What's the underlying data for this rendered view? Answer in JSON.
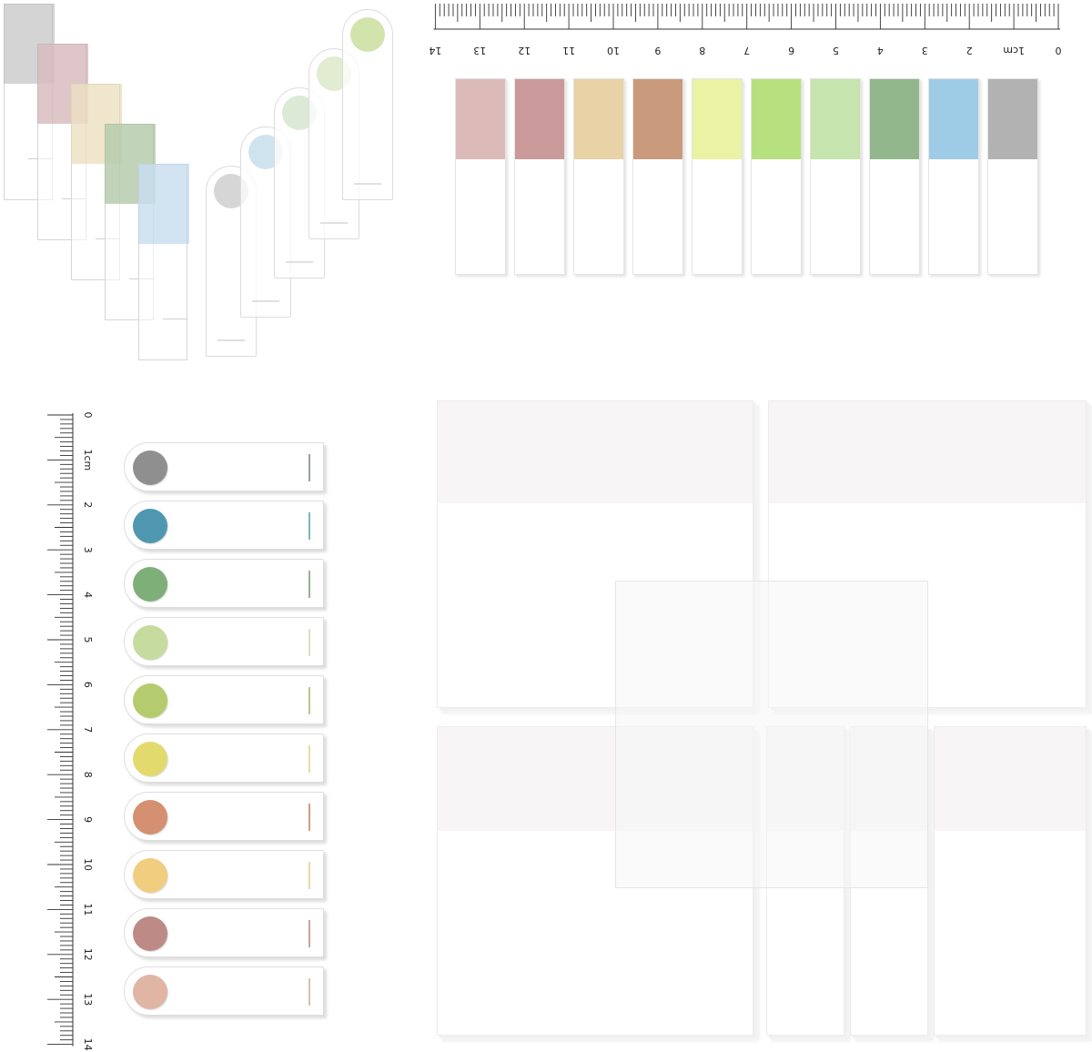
{
  "ruler_horizontal": {
    "labels": [
      "0",
      "1cm",
      "2",
      "3",
      "4",
      "5",
      "6",
      "7",
      "8",
      "9",
      "10",
      "11",
      "12",
      "13",
      "14"
    ]
  },
  "ruler_vertical": {
    "labels": [
      "0",
      "1cm",
      "2",
      "3",
      "4",
      "5",
      "6",
      "7",
      "8",
      "9",
      "10",
      "11",
      "12",
      "13",
      "14"
    ]
  },
  "fan_strips": [
    {
      "color": "#b9b9b9"
    },
    {
      "color": "#c9a3a8"
    },
    {
      "color": "#e6d5ae"
    },
    {
      "color": "#9bb98f"
    },
    {
      "color": "#b7d2ea"
    }
  ],
  "fan_tabs": [
    {
      "color": "#d6d6d6"
    },
    {
      "color": "#cfe3ef"
    },
    {
      "color": "#dbe9d6"
    },
    {
      "color": "#e2ecd0"
    },
    {
      "color": "#d3e3ac"
    }
  ],
  "flags": [
    {
      "color": "#dcbab8"
    },
    {
      "color": "#c99a99"
    },
    {
      "color": "#e8d2a6"
    },
    {
      "color": "#c99b7c"
    },
    {
      "color": "#eaf2a4"
    },
    {
      "color": "#b7e07f"
    },
    {
      "color": "#c6e4ad"
    },
    {
      "color": "#92b78c"
    },
    {
      "color": "#9ecbe6"
    },
    {
      "color": "#b2b2b2"
    }
  ],
  "tabs": [
    {
      "color": "#8f8f8f",
      "line": "#9aa29a"
    },
    {
      "color": "#4f97b0",
      "line": "#7fb6bd"
    },
    {
      "color": "#7faf79",
      "line": "#9ab294"
    },
    {
      "color": "#c6dc9f",
      "line": "#d8e3bd"
    },
    {
      "color": "#b5cc6e",
      "line": "#b9c98a"
    },
    {
      "color": "#e3da6d",
      "line": "#e7e0a0"
    },
    {
      "color": "#d49070",
      "line": "#cf9c86"
    },
    {
      "color": "#f1cd7f",
      "line": "#e8d9a8"
    },
    {
      "color": "#bd8a85",
      "line": "#c7a29f"
    },
    {
      "color": "#e0b5a4",
      "line": "#dbbfb2"
    }
  ]
}
